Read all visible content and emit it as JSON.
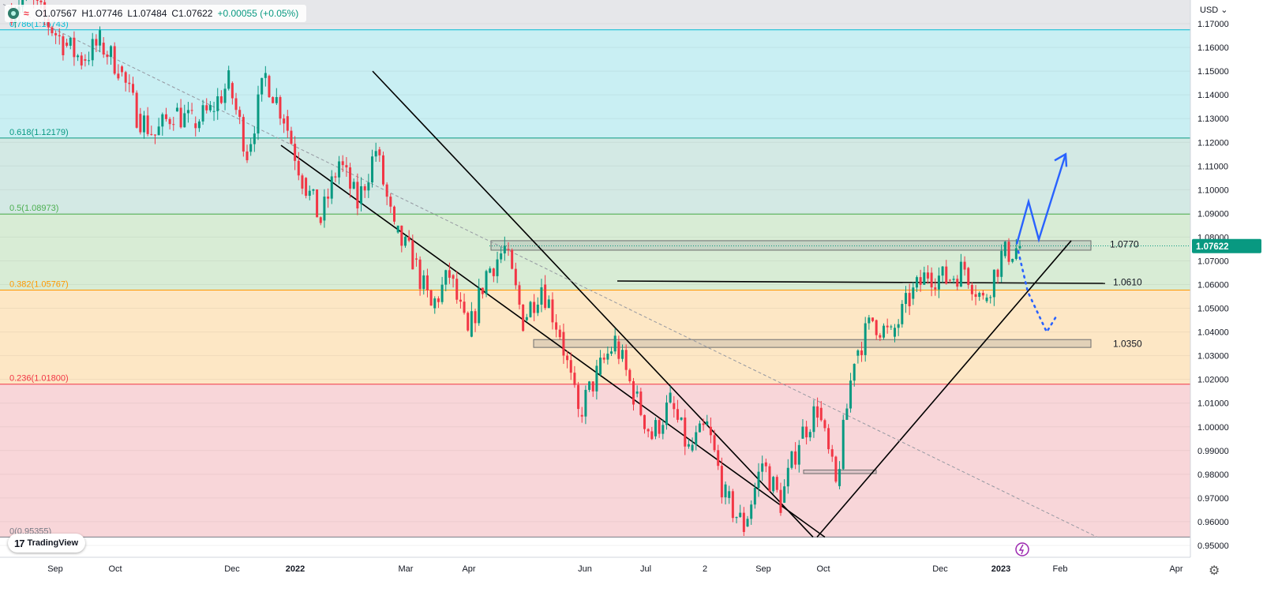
{
  "header": {
    "ohlc_open": "O1.07567",
    "ohlc_high": "H1.07746",
    "ohlc_low": "L1.07484",
    "ohlc_close": "C1.07622",
    "ohlc_change": "+0.00055 (+0.05%)",
    "currency": "USD",
    "brand": "TradingView"
  },
  "chart_data": {
    "type": "candlestick",
    "ylim": [
      0.945,
      1.18
    ],
    "y_ticks": [
      "1.17000",
      "1.16000",
      "1.15000",
      "1.14000",
      "1.13000",
      "1.12000",
      "1.11000",
      "1.10000",
      "1.09000",
      "1.08000",
      "1.07000",
      "1.06000",
      "1.05000",
      "1.04000",
      "1.03000",
      "1.02000",
      "1.01000",
      "1.00000",
      "0.99000",
      "0.98000",
      "0.97000",
      "0.96000",
      "0.95000"
    ],
    "x_ticks": [
      "Sep",
      "Oct",
      "Dec",
      "2022",
      "Mar",
      "Apr",
      "Jun",
      "Jul",
      "2",
      "Sep",
      "Oct",
      "Dec",
      "2023",
      "Feb",
      "Apr"
    ],
    "bold_x_ticks": [
      "2022",
      "2023"
    ],
    "current_price": "1.07622",
    "fib_levels": [
      {
        "label": "0.786(1.16743)",
        "price": 1.16743,
        "color": "#00bcd4",
        "fill": "#c9eff3"
      },
      {
        "label": "0.618(1.12179)",
        "price": 1.12179,
        "color": "#089981",
        "fill": "#d3e9e4"
      },
      {
        "label": "0.5(1.08973)",
        "price": 1.08973,
        "color": "#4caf50",
        "fill": "#d8ecd5"
      },
      {
        "label": "0.382(1.05767)",
        "price": 1.05767,
        "color": "#ff9800",
        "fill": "#fde7c5"
      },
      {
        "label": "0.236(1.01800)",
        "price": 1.018,
        "color": "#f23645",
        "fill": "#f8d6d9"
      },
      {
        "label": "0(0.95355)",
        "price": 0.95355,
        "color": "#787b86",
        "fill": "#f8d6d9"
      }
    ],
    "levels": [
      {
        "label": "1.0770",
        "price": 1.077
      },
      {
        "label": "1.0610",
        "price": 1.061
      },
      {
        "label": "1.0350",
        "price": 1.035
      }
    ],
    "zones": [
      {
        "name": "zone-1.0770",
        "x_start": "Apr",
        "x_end": "Feb",
        "low": 1.0745,
        "high": 1.0785
      },
      {
        "name": "zone-1.0350",
        "x_start": "May",
        "x_end": "Feb",
        "low": 1.0335,
        "high": 1.0368
      },
      {
        "name": "zone-0.98",
        "x_start": "Sep-late",
        "x_end": "Nov",
        "low": 0.9803,
        "high": 0.9818
      }
    ],
    "price_path": [
      {
        "x": "Aug",
        "y": 1.175
      },
      {
        "x": "Sep",
        "y": 1.182
      },
      {
        "x": "Sep",
        "y": 1.172
      },
      {
        "x": "Oct",
        "y": 1.162
      },
      {
        "x": "Oct",
        "y": 1.155
      },
      {
        "x": "Nov",
        "y": 1.162
      },
      {
        "x": "Nov",
        "y": 1.152
      },
      {
        "x": "Nov",
        "y": 1.132
      },
      {
        "x": "Dec",
        "y": 1.123
      },
      {
        "x": "Dec",
        "y": 1.133
      },
      {
        "x": "Dec",
        "y": 1.128
      },
      {
        "x": "2022",
        "y": 1.133
      },
      {
        "x": "Jan",
        "y": 1.145
      },
      {
        "x": "Jan",
        "y": 1.116
      },
      {
        "x": "Feb",
        "y": 1.148
      },
      {
        "x": "Feb",
        "y": 1.131
      },
      {
        "x": "Feb",
        "y": 1.105
      },
      {
        "x": "Mar",
        "y": 1.087
      },
      {
        "x": "Mar",
        "y": 1.112
      },
      {
        "x": "Mar",
        "y": 1.094
      },
      {
        "x": "Apr",
        "y": 1.117
      },
      {
        "x": "Apr",
        "y": 1.082
      },
      {
        "x": "Apr",
        "y": 1.071
      },
      {
        "x": "May",
        "y": 1.05
      },
      {
        "x": "May",
        "y": 1.064
      },
      {
        "x": "May",
        "y": 1.038
      },
      {
        "x": "May",
        "y": 1.065
      },
      {
        "x": "Jun",
        "y": 1.075
      },
      {
        "x": "Jun",
        "y": 1.045
      },
      {
        "x": "Jun",
        "y": 1.06
      },
      {
        "x": "Jul",
        "y": 1.04
      },
      {
        "x": "Jul",
        "y": 1.005
      },
      {
        "x": "Jul",
        "y": 1.022
      },
      {
        "x": "Aug",
        "y": 1.036
      },
      {
        "x": "Aug",
        "y": 1.014
      },
      {
        "x": "Aug",
        "y": 0.996
      },
      {
        "x": "Sep",
        "y": 1.01
      },
      {
        "x": "Sep",
        "y": 0.99
      },
      {
        "x": "Sep",
        "y": 1.0
      },
      {
        "x": "Sep",
        "y": 0.97
      },
      {
        "x": "Oct",
        "y": 0.958
      },
      {
        "x": "Oct",
        "y": 0.985
      },
      {
        "x": "Oct",
        "y": 0.968
      },
      {
        "x": "Oct",
        "y": 0.995
      },
      {
        "x": "Nov",
        "y": 1.008
      },
      {
        "x": "Nov",
        "y": 0.975
      },
      {
        "x": "Nov",
        "y": 1.03
      },
      {
        "x": "Nov",
        "y": 1.045
      },
      {
        "x": "Dec",
        "y": 1.038
      },
      {
        "x": "Dec",
        "y": 1.054
      },
      {
        "x": "Dec",
        "y": 1.065
      },
      {
        "x": "Dec",
        "y": 1.062
      },
      {
        "x": "2023",
        "y": 1.067
      },
      {
        "x": "2023",
        "y": 1.053
      },
      {
        "x": "Jan",
        "y": 1.072
      },
      {
        "x": "Jan",
        "y": 1.076
      }
    ],
    "projection_up": [
      {
        "x": "Jan",
        "y": 1.077
      },
      {
        "x": "Jan",
        "y": 1.095
      },
      {
        "x": "Jan",
        "y": 1.079
      },
      {
        "x": "Feb",
        "y": 1.115
      }
    ],
    "projection_down": [
      {
        "x": "Jan",
        "y": 1.074
      },
      {
        "x": "Jan",
        "y": 1.057
      },
      {
        "x": "Feb",
        "y": 1.04
      },
      {
        "x": "Feb",
        "y": 1.046
      }
    ],
    "colors": {
      "up": "#089981",
      "down": "#f23645",
      "projection": "#2962ff",
      "lines": "#000000",
      "price_tag": "#089981"
    },
    "grid": true
  }
}
